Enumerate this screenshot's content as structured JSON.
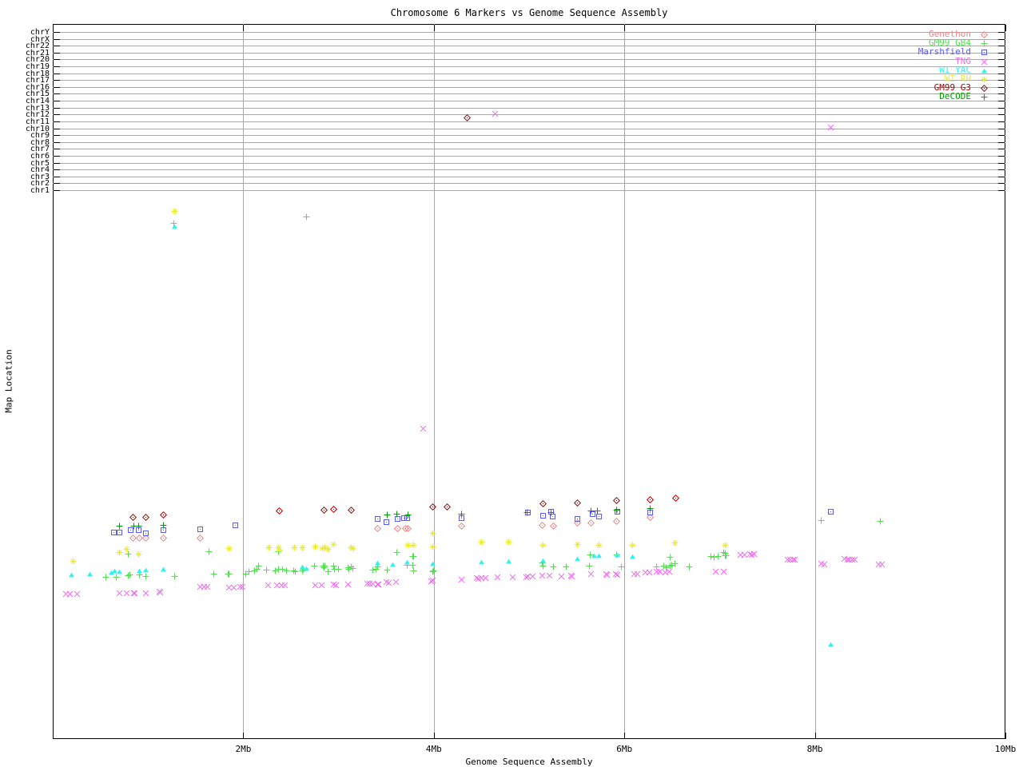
{
  "title": "Chromosome 6 Markers vs Genome Sequence Assembly",
  "chart_data": {
    "type": "scatter",
    "title": "Chromosome 6 Markers vs Genome Sequence Assembly",
    "xlabel": "Genome Sequence Assembly",
    "ylabel": "Map Location",
    "xlim_mb": [
      0,
      10
    ],
    "x_tick_labels": [
      "2Mb",
      "4Mb",
      "6Mb",
      "8Mb",
      "10Mb"
    ],
    "x_tick_mb": [
      2,
      4,
      6,
      8,
      10
    ],
    "grid": "on",
    "legend_position": "top-right-inside",
    "y_categories": [
      "chrY",
      "chrX",
      "chr22",
      "chr21",
      "chr20",
      "chr19",
      "chr18",
      "chr17",
      "chr16",
      "chr15",
      "chr14",
      "chr13",
      "chr12",
      "chr11",
      "chr10",
      "chr9",
      "chr8",
      "chr7",
      "chr6",
      "chr5",
      "chr4",
      "chr3",
      "chr2",
      "chr1"
    ],
    "y_note": "y axis is categorical map location; chromosome gridline rows occupy the top band; scatter y values below are screen rows (px) since no numeric y scale is shown; x values in Mb",
    "series": [
      {
        "name": "Genethon",
        "color": "#f08080",
        "glyph": "diamond",
        "points": [
          [
            0.84,
            673
          ],
          [
            0.91,
            673
          ],
          [
            0.98,
            673
          ],
          [
            1.16,
            673
          ],
          [
            1.55,
            673
          ],
          [
            3.41,
            661
          ],
          [
            3.62,
            661
          ],
          [
            3.7,
            661
          ],
          [
            3.73,
            661
          ],
          [
            4.29,
            658
          ],
          [
            5.14,
            657
          ],
          [
            5.26,
            658
          ],
          [
            5.51,
            654
          ],
          [
            5.65,
            654
          ],
          [
            5.92,
            652
          ],
          [
            6.27,
            647
          ]
        ]
      },
      {
        "name": "GM99 GB4",
        "color": "#50e050",
        "glyph": "plus",
        "points": [
          [
            0.56,
            722
          ],
          [
            0.67,
            722
          ],
          [
            0.79,
            693
          ],
          [
            0.79,
            720
          ],
          [
            0.81,
            719
          ],
          [
            0.91,
            719
          ],
          [
            0.98,
            721
          ],
          [
            1.27,
            279
          ],
          [
            1.28,
            721
          ],
          [
            1.64,
            690
          ],
          [
            1.69,
            718
          ],
          [
            1.84,
            718
          ],
          [
            1.85,
            718
          ],
          [
            2.03,
            718
          ],
          [
            2.06,
            715
          ],
          [
            2.12,
            714
          ],
          [
            2.14,
            712
          ],
          [
            2.16,
            708
          ],
          [
            2.24,
            713
          ],
          [
            2.34,
            714
          ],
          [
            2.37,
            690
          ],
          [
            2.37,
            712
          ],
          [
            2.41,
            712
          ],
          [
            2.45,
            714
          ],
          [
            2.53,
            714
          ],
          [
            2.55,
            715
          ],
          [
            2.62,
            714
          ],
          [
            2.63,
            712
          ],
          [
            2.66,
            271
          ],
          [
            2.75,
            708
          ],
          [
            2.84,
            708
          ],
          [
            2.85,
            710
          ],
          [
            2.86,
            708
          ],
          [
            2.89,
            715
          ],
          [
            2.95,
            708
          ],
          [
            2.96,
            712
          ],
          [
            3.0,
            712
          ],
          [
            3.1,
            710
          ],
          [
            3.11,
            712
          ],
          [
            3.13,
            709
          ],
          [
            3.15,
            711
          ],
          [
            3.36,
            713
          ],
          [
            3.39,
            712
          ],
          [
            3.41,
            709
          ],
          [
            3.51,
            713
          ],
          [
            3.61,
            691
          ],
          [
            3.72,
            707
          ],
          [
            3.78,
            696
          ],
          [
            3.78,
            707
          ],
          [
            3.79,
            714
          ],
          [
            3.79,
            696
          ],
          [
            3.99,
            715
          ],
          [
            4.0,
            714
          ],
          [
            5.14,
            704
          ],
          [
            5.15,
            708
          ],
          [
            5.26,
            709
          ],
          [
            5.39,
            709
          ],
          [
            5.63,
            708
          ],
          [
            5.64,
            694
          ],
          [
            5.92,
            694
          ],
          [
            5.97,
            709
          ],
          [
            6.34,
            709
          ],
          [
            6.41,
            708
          ],
          [
            6.44,
            710
          ],
          [
            6.48,
            697
          ],
          [
            6.48,
            708
          ],
          [
            6.5,
            707
          ],
          [
            6.53,
            705
          ],
          [
            6.68,
            709
          ],
          [
            6.91,
            696
          ],
          [
            6.94,
            697
          ],
          [
            6.98,
            696
          ],
          [
            7.04,
            691
          ],
          [
            7.06,
            692
          ],
          [
            7.06,
            695
          ],
          [
            7.07,
            695
          ],
          [
            8.07,
            651
          ],
          [
            8.69,
            652
          ]
        ]
      },
      {
        "name": "Marshfield",
        "color": "#5a5aff",
        "glyph": "square",
        "points": [
          [
            0.64,
            666
          ],
          [
            0.7,
            666
          ],
          [
            0.82,
            663
          ],
          [
            0.9,
            663
          ],
          [
            0.98,
            667
          ],
          [
            1.16,
            663
          ],
          [
            1.55,
            662
          ],
          [
            1.92,
            657
          ],
          [
            3.41,
            649
          ],
          [
            3.5,
            653
          ],
          [
            3.62,
            649
          ],
          [
            3.69,
            648
          ],
          [
            3.72,
            648
          ],
          [
            4.29,
            648
          ],
          [
            4.99,
            641
          ],
          [
            5.15,
            645
          ],
          [
            5.23,
            640
          ],
          [
            5.25,
            646
          ],
          [
            5.51,
            649
          ],
          [
            5.67,
            643
          ],
          [
            5.73,
            646
          ],
          [
            5.93,
            640
          ],
          [
            6.27,
            641
          ],
          [
            8.17,
            640
          ]
        ]
      },
      {
        "name": "TNG",
        "color": "#ee6eee",
        "glyph": "x",
        "points": [
          [
            0.14,
            743
          ],
          [
            0.18,
            743
          ],
          [
            0.26,
            743
          ],
          [
            0.7,
            742
          ],
          [
            0.78,
            742
          ],
          [
            0.85,
            742
          ],
          [
            0.86,
            742
          ],
          [
            0.98,
            742
          ],
          [
            1.12,
            740
          ],
          [
            1.13,
            741
          ],
          [
            1.55,
            734
          ],
          [
            1.59,
            734
          ],
          [
            1.62,
            734
          ],
          [
            1.85,
            735
          ],
          [
            1.9,
            735
          ],
          [
            1.97,
            734
          ],
          [
            1.99,
            734
          ],
          [
            2.26,
            732
          ],
          [
            2.35,
            732
          ],
          [
            2.4,
            732
          ],
          [
            2.44,
            732
          ],
          [
            2.76,
            732
          ],
          [
            2.82,
            732
          ],
          [
            2.95,
            731
          ],
          [
            2.97,
            732
          ],
          [
            3.1,
            731
          ],
          [
            3.3,
            730
          ],
          [
            3.33,
            730
          ],
          [
            3.36,
            730
          ],
          [
            3.41,
            731
          ],
          [
            3.42,
            731
          ],
          [
            3.5,
            728
          ],
          [
            3.53,
            729
          ],
          [
            3.6,
            728
          ],
          [
            3.89,
            536
          ],
          [
            3.97,
            727
          ],
          [
            3.99,
            726
          ],
          [
            4.29,
            725
          ],
          [
            4.45,
            723
          ],
          [
            4.47,
            724
          ],
          [
            4.5,
            723
          ],
          [
            4.54,
            723
          ],
          [
            4.64,
            142
          ],
          [
            4.67,
            722
          ],
          [
            4.83,
            722
          ],
          [
            4.97,
            722
          ],
          [
            4.99,
            721
          ],
          [
            5.04,
            721
          ],
          [
            5.14,
            720
          ],
          [
            5.21,
            720
          ],
          [
            5.34,
            721
          ],
          [
            5.44,
            720
          ],
          [
            5.45,
            721
          ],
          [
            5.65,
            718
          ],
          [
            5.81,
            718
          ],
          [
            5.82,
            719
          ],
          [
            5.91,
            718
          ],
          [
            5.93,
            719
          ],
          [
            6.1,
            718
          ],
          [
            6.14,
            718
          ],
          [
            6.22,
            716
          ],
          [
            6.26,
            716
          ],
          [
            6.34,
            715
          ],
          [
            6.37,
            715
          ],
          [
            6.43,
            716
          ],
          [
            6.47,
            715
          ],
          [
            6.96,
            715
          ],
          [
            7.04,
            715
          ],
          [
            7.22,
            694
          ],
          [
            7.26,
            694
          ],
          [
            7.32,
            693
          ],
          [
            7.34,
            694
          ],
          [
            7.36,
            693
          ],
          [
            7.71,
            700
          ],
          [
            7.74,
            700
          ],
          [
            7.77,
            700
          ],
          [
            7.79,
            700
          ],
          [
            8.07,
            705
          ],
          [
            8.1,
            706
          ],
          [
            8.17,
            159
          ],
          [
            8.31,
            699
          ],
          [
            8.34,
            700
          ],
          [
            8.36,
            700
          ],
          [
            8.39,
            700
          ],
          [
            8.42,
            700
          ],
          [
            8.67,
            706
          ],
          [
            8.7,
            706
          ]
        ]
      },
      {
        "name": "WI YAC",
        "color": "#2ef2f2",
        "glyph": "triangle",
        "points": [
          [
            0.2,
            719
          ],
          [
            0.39,
            718
          ],
          [
            0.62,
            716
          ],
          [
            0.65,
            714
          ],
          [
            0.7,
            715
          ],
          [
            0.91,
            714
          ],
          [
            0.98,
            713
          ],
          [
            1.16,
            712
          ],
          [
            1.28,
            283
          ],
          [
            2.62,
            709
          ],
          [
            2.66,
            711
          ],
          [
            3.41,
            704
          ],
          [
            3.57,
            706
          ],
          [
            3.72,
            703
          ],
          [
            3.99,
            705
          ],
          [
            4.5,
            703
          ],
          [
            4.79,
            702
          ],
          [
            5.15,
            701
          ],
          [
            5.51,
            699
          ],
          [
            5.68,
            695
          ],
          [
            5.73,
            695
          ],
          [
            5.93,
            694
          ],
          [
            6.09,
            696
          ],
          [
            8.17,
            806
          ]
        ]
      },
      {
        "name": "WI RH",
        "color": "#ebeb3c",
        "glyph": "star",
        "points": [
          [
            0.21,
            702
          ],
          [
            0.7,
            691
          ],
          [
            0.78,
            687
          ],
          [
            0.9,
            693
          ],
          [
            1.28,
            264
          ],
          [
            1.85,
            686
          ],
          [
            2.27,
            685
          ],
          [
            2.37,
            685
          ],
          [
            2.38,
            688
          ],
          [
            2.54,
            685
          ],
          [
            2.62,
            685
          ],
          [
            2.76,
            684
          ],
          [
            2.83,
            686
          ],
          [
            2.86,
            685
          ],
          [
            2.89,
            687
          ],
          [
            2.95,
            681
          ],
          [
            3.13,
            685
          ],
          [
            3.15,
            686
          ],
          [
            3.73,
            682
          ],
          [
            3.79,
            682
          ],
          [
            3.99,
            667
          ],
          [
            3.99,
            684
          ],
          [
            4.5,
            678
          ],
          [
            4.79,
            678
          ],
          [
            5.15,
            682
          ],
          [
            5.51,
            681
          ],
          [
            5.73,
            682
          ],
          [
            6.09,
            682
          ],
          [
            6.53,
            679
          ],
          [
            7.06,
            682
          ]
        ]
      },
      {
        "name": "GM99 G3",
        "color": "#a00000",
        "glyph": "diamond",
        "points": [
          [
            0.84,
            647
          ],
          [
            0.98,
            647
          ],
          [
            1.16,
            644
          ],
          [
            2.38,
            639
          ],
          [
            2.85,
            638
          ],
          [
            2.95,
            637
          ],
          [
            3.13,
            638
          ],
          [
            3.99,
            634
          ],
          [
            4.14,
            634
          ],
          [
            4.35,
            147
          ],
          [
            5.15,
            630
          ],
          [
            5.51,
            629
          ],
          [
            5.92,
            626
          ],
          [
            6.27,
            625
          ],
          [
            6.54,
            623
          ]
        ]
      },
      {
        "name": "DeCODE",
        "color": "#00a000",
        "glyph": "plus",
        "points": [
          [
            0.7,
            658
          ],
          [
            0.85,
            658
          ],
          [
            0.9,
            658
          ],
          [
            1.16,
            657
          ],
          [
            3.51,
            644
          ],
          [
            3.61,
            643
          ],
          [
            3.73,
            644
          ],
          [
            4.29,
            643
          ],
          [
            4.98,
            641
          ],
          [
            5.23,
            641
          ],
          [
            5.65,
            639
          ],
          [
            5.72,
            639
          ],
          [
            5.92,
            638
          ],
          [
            6.27,
            636
          ]
        ]
      }
    ]
  }
}
